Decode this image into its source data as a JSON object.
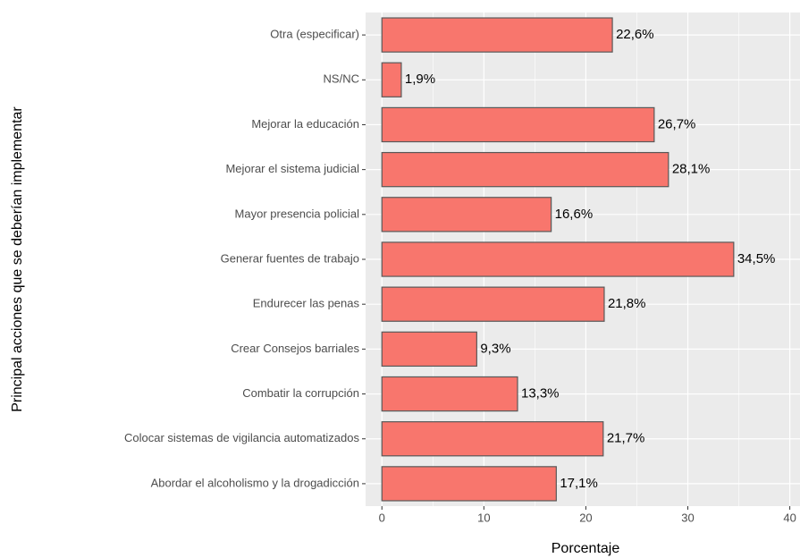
{
  "chart_data": {
    "type": "bar",
    "orientation": "horizontal",
    "x_label": "Porcentaje",
    "y_label": "Principal acciones que se deberían implementar",
    "categories": [
      "Otra (especificar)",
      "NS/NC",
      "Mejorar la educación",
      "Mejorar el sistema judicial",
      "Mayor presencia policial",
      "Generar fuentes de trabajo",
      "Endurecer las penas",
      "Crear Consejos barriales",
      "Combatir la corrupción",
      "Colocar sistemas de vigilancia automatizados",
      "Abordar el alcoholismo y la drogadicción"
    ],
    "values": [
      22.6,
      1.9,
      26.7,
      28.1,
      16.6,
      34.5,
      21.8,
      9.3,
      13.3,
      21.7,
      17.1
    ],
    "value_labels": [
      "22,6%",
      "1,9%",
      "26,7%",
      "28,1%",
      "16,6%",
      "34,5%",
      "21,8%",
      "9,3%",
      "13,3%",
      "21,7%",
      "17,1%"
    ],
    "color": "#F8766D",
    "xlim": [
      -1.6,
      41
    ],
    "xticks": [
      0,
      10,
      20,
      30,
      40
    ],
    "grid": true
  }
}
